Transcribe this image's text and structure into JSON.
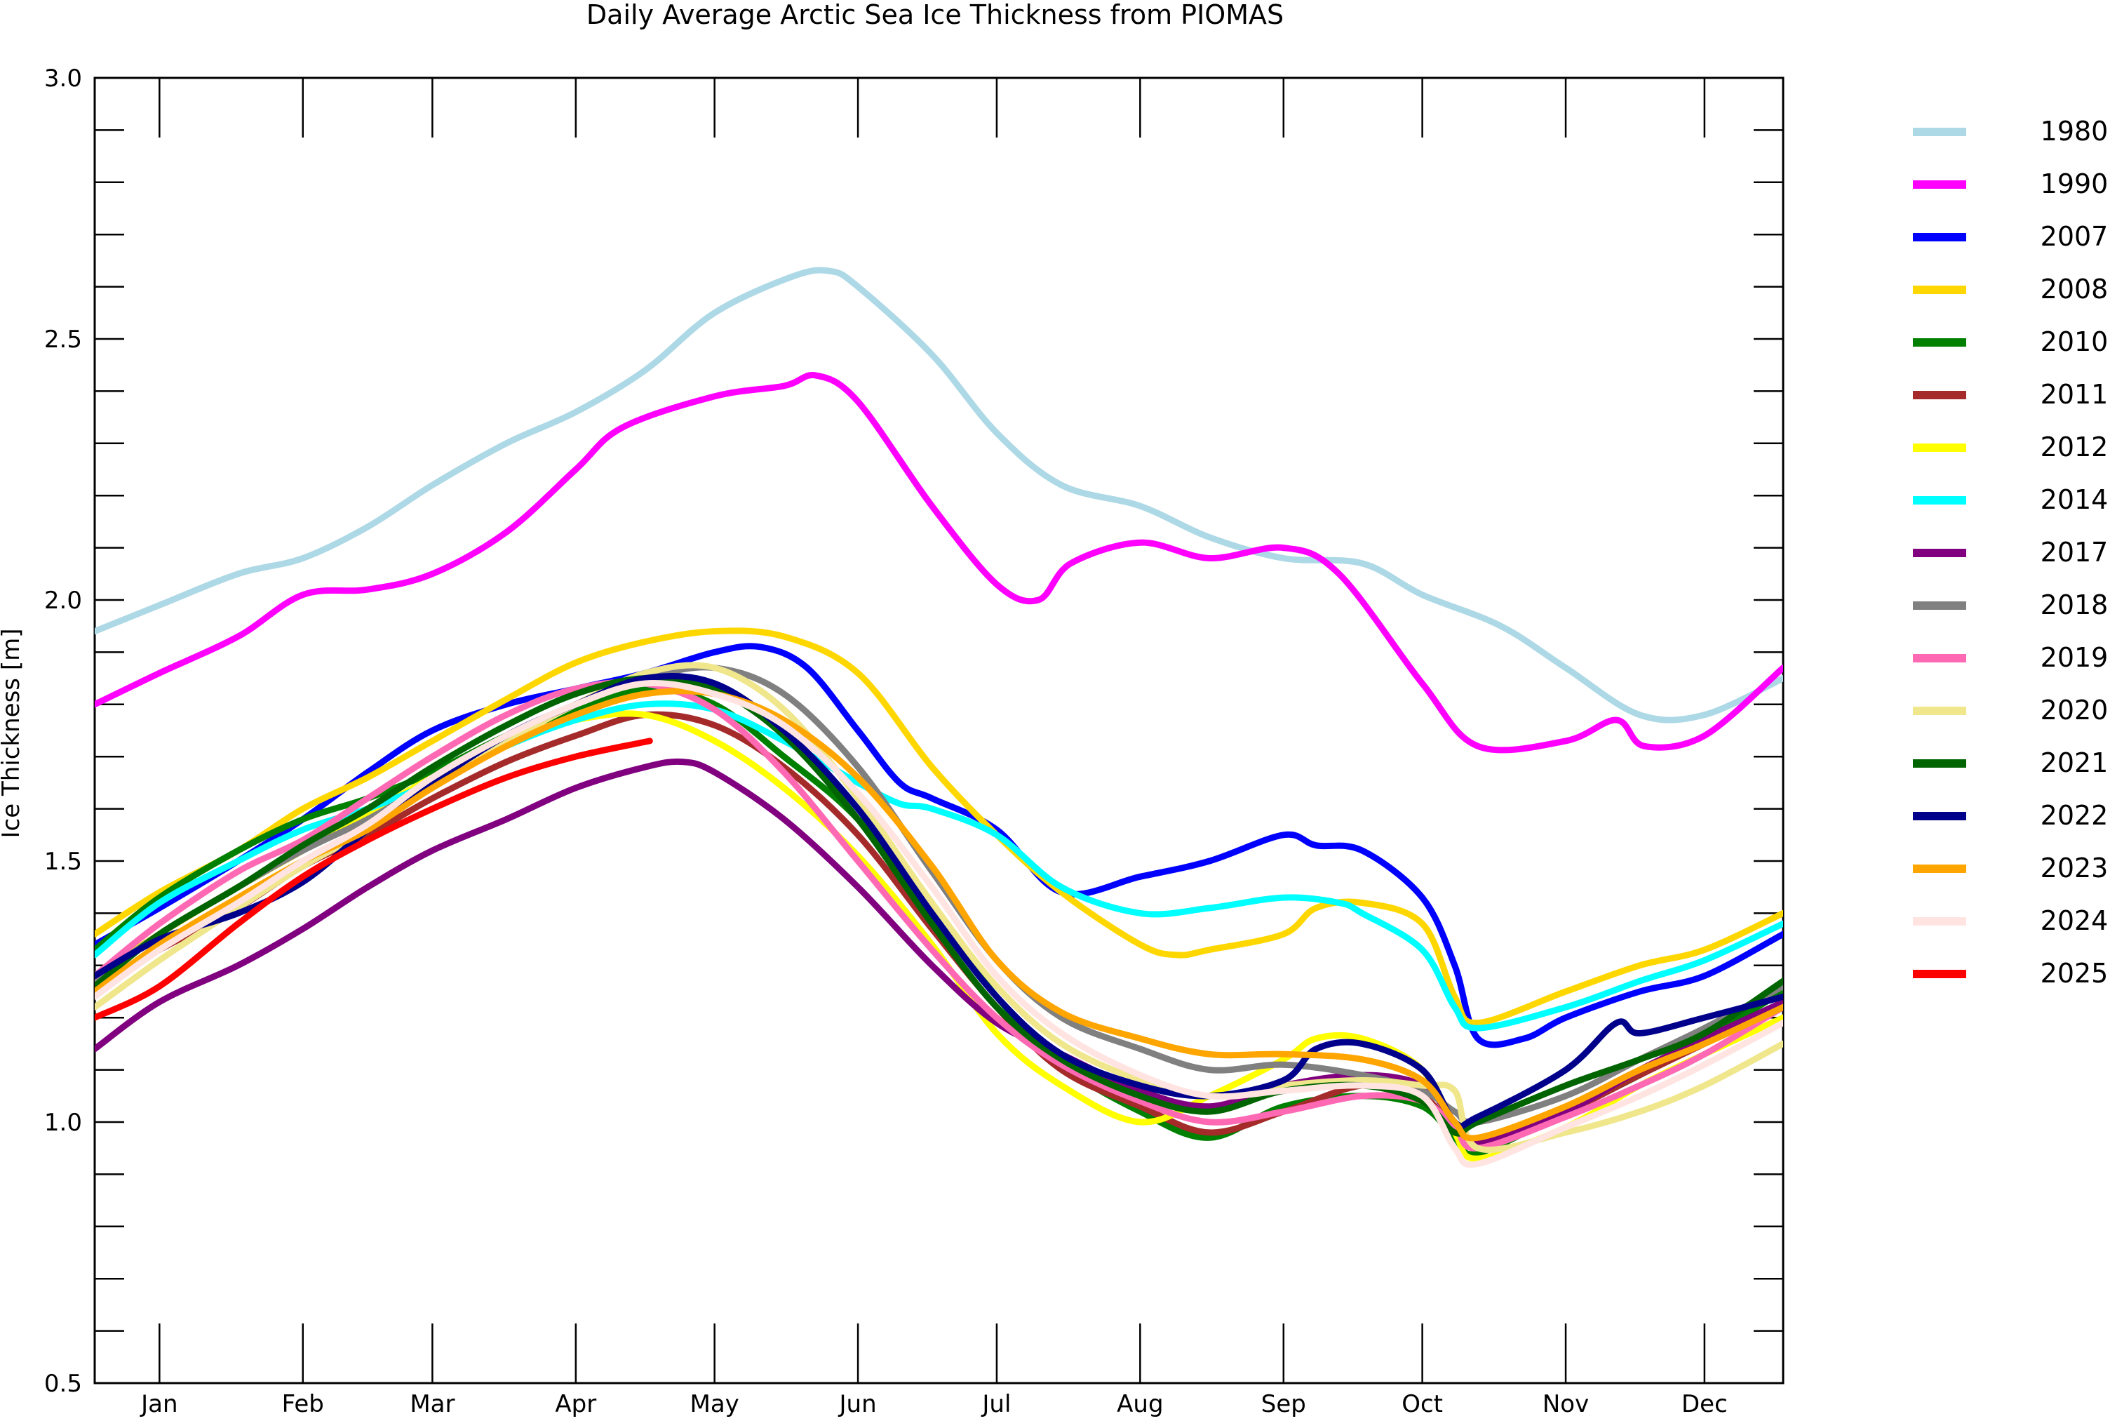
{
  "chart_data": {
    "type": "line",
    "title": "Daily Average Arctic Sea Ice Thickness from PIOMAS",
    "ylabel": "Ice Thickness  [m]",
    "xlabel": "",
    "ylim": [
      0.5,
      3.0
    ],
    "y_ticks": [
      "0.5",
      "1.0",
      "1.5",
      "2.0",
      "2.5",
      "3.0"
    ],
    "x_range_days": [
      1,
      366
    ],
    "months": [
      {
        "label": "Jan",
        "day": 15
      },
      {
        "label": "Feb",
        "day": 46
      },
      {
        "label": "Mar",
        "day": 74
      },
      {
        "label": "Apr",
        "day": 105
      },
      {
        "label": "May",
        "day": 135
      },
      {
        "label": "Jun",
        "day": 166
      },
      {
        "label": "Jul",
        "day": 196
      },
      {
        "label": "Aug",
        "day": 227
      },
      {
        "label": "Sep",
        "day": 258
      },
      {
        "label": "Oct",
        "day": 288
      },
      {
        "label": "Nov",
        "day": 319
      },
      {
        "label": "Dec",
        "day": 349
      }
    ],
    "legend_position": "right",
    "series": [
      {
        "name": "1980",
        "color": "#add8e6",
        "x": [
          1,
          15,
          32,
          46,
          60,
          74,
          90,
          105,
          120,
          135,
          152,
          160,
          166,
          182,
          196,
          210,
          227,
          242,
          258,
          275,
          288,
          305,
          319,
          335,
          349,
          366
        ],
        "y": [
          1.94,
          1.99,
          2.05,
          2.08,
          2.14,
          2.22,
          2.3,
          2.36,
          2.44,
          2.55,
          2.62,
          2.63,
          2.6,
          2.47,
          2.32,
          2.22,
          2.18,
          2.12,
          2.08,
          2.07,
          2.01,
          1.95,
          1.87,
          1.78,
          1.78,
          1.85
        ]
      },
      {
        "name": "1990",
        "color": "#ff00ff",
        "x": [
          1,
          15,
          32,
          46,
          60,
          74,
          90,
          105,
          115,
          135,
          150,
          157,
          166,
          182,
          196,
          205,
          212,
          227,
          242,
          258,
          270,
          288,
          300,
          319,
          330,
          336,
          349,
          366
        ],
        "y": [
          1.8,
          1.86,
          1.93,
          2.01,
          2.02,
          2.05,
          2.13,
          2.25,
          2.33,
          2.39,
          2.41,
          2.43,
          2.38,
          2.18,
          2.03,
          2.0,
          2.07,
          2.11,
          2.08,
          2.1,
          2.05,
          1.84,
          1.72,
          1.73,
          1.77,
          1.72,
          1.74,
          1.87
        ]
      },
      {
        "name": "2007",
        "color": "#0000ff",
        "x": [
          1,
          15,
          32,
          46,
          60,
          74,
          90,
          105,
          120,
          135,
          145,
          155,
          166,
          175,
          182,
          196,
          210,
          227,
          242,
          258,
          265,
          275,
          288,
          295,
          300,
          310,
          319,
          335,
          349,
          366
        ],
        "y": [
          1.34,
          1.41,
          1.5,
          1.58,
          1.67,
          1.75,
          1.8,
          1.83,
          1.86,
          1.9,
          1.91,
          1.87,
          1.75,
          1.65,
          1.62,
          1.56,
          1.44,
          1.47,
          1.5,
          1.55,
          1.53,
          1.52,
          1.43,
          1.3,
          1.16,
          1.16,
          1.2,
          1.25,
          1.28,
          1.36
        ]
      },
      {
        "name": "2008",
        "color": "#ffd700",
        "x": [
          1,
          15,
          32,
          46,
          60,
          74,
          90,
          105,
          120,
          135,
          150,
          166,
          182,
          196,
          210,
          227,
          235,
          242,
          258,
          265,
          275,
          288,
          295,
          300,
          319,
          335,
          349,
          366
        ],
        "y": [
          1.36,
          1.44,
          1.52,
          1.6,
          1.66,
          1.73,
          1.81,
          1.88,
          1.92,
          1.94,
          1.93,
          1.86,
          1.68,
          1.55,
          1.44,
          1.34,
          1.32,
          1.33,
          1.36,
          1.41,
          1.42,
          1.38,
          1.24,
          1.19,
          1.25,
          1.3,
          1.33,
          1.4
        ]
      },
      {
        "name": "2010",
        "color": "#008000",
        "x": [
          1,
          15,
          32,
          46,
          60,
          74,
          90,
          105,
          120,
          135,
          150,
          166,
          182,
          196,
          210,
          227,
          242,
          258,
          275,
          288,
          295,
          300,
          319,
          335,
          349,
          366
        ],
        "y": [
          1.33,
          1.43,
          1.52,
          1.58,
          1.62,
          1.67,
          1.74,
          1.79,
          1.83,
          1.8,
          1.7,
          1.58,
          1.4,
          1.24,
          1.11,
          1.02,
          0.97,
          1.03,
          1.05,
          1.03,
          0.97,
          0.94,
          1.02,
          1.09,
          1.16,
          1.25
        ]
      },
      {
        "name": "2011",
        "color": "#a52a2a",
        "x": [
          1,
          15,
          32,
          46,
          60,
          74,
          90,
          105,
          120,
          135,
          150,
          166,
          182,
          196,
          210,
          227,
          242,
          258,
          275,
          288,
          295,
          300,
          319,
          335,
          349,
          366
        ],
        "y": [
          1.26,
          1.33,
          1.41,
          1.49,
          1.55,
          1.62,
          1.69,
          1.74,
          1.78,
          1.76,
          1.68,
          1.55,
          1.37,
          1.22,
          1.1,
          1.03,
          0.98,
          1.02,
          1.07,
          1.05,
          0.98,
          0.96,
          1.02,
          1.09,
          1.15,
          1.22
        ]
      },
      {
        "name": "2012",
        "color": "#ffff00",
        "x": [
          1,
          15,
          32,
          46,
          60,
          74,
          90,
          105,
          120,
          135,
          150,
          166,
          182,
          196,
          210,
          227,
          242,
          258,
          265,
          275,
          288,
          295,
          300,
          319,
          335,
          349,
          366
        ],
        "y": [
          1.28,
          1.36,
          1.45,
          1.52,
          1.59,
          1.66,
          1.73,
          1.77,
          1.78,
          1.73,
          1.64,
          1.51,
          1.34,
          1.17,
          1.07,
          1.0,
          1.05,
          1.12,
          1.16,
          1.16,
          1.1,
          0.98,
          0.93,
          0.99,
          1.07,
          1.13,
          1.2
        ]
      },
      {
        "name": "2014",
        "color": "#00ffff",
        "x": [
          1,
          15,
          32,
          46,
          60,
          74,
          90,
          105,
          120,
          135,
          150,
          166,
          175,
          182,
          196,
          210,
          227,
          242,
          258,
          270,
          275,
          288,
          295,
          300,
          319,
          335,
          349,
          366
        ],
        "y": [
          1.32,
          1.42,
          1.5,
          1.56,
          1.6,
          1.65,
          1.72,
          1.77,
          1.8,
          1.79,
          1.73,
          1.65,
          1.61,
          1.6,
          1.55,
          1.45,
          1.4,
          1.41,
          1.43,
          1.42,
          1.4,
          1.33,
          1.22,
          1.18,
          1.22,
          1.27,
          1.31,
          1.38
        ]
      },
      {
        "name": "2017",
        "color": "#800080",
        "x": [
          1,
          15,
          32,
          46,
          60,
          74,
          90,
          105,
          120,
          128,
          135,
          150,
          166,
          182,
          196,
          210,
          227,
          242,
          258,
          275,
          288,
          295,
          300,
          319,
          335,
          349,
          366
        ],
        "y": [
          1.14,
          1.23,
          1.3,
          1.37,
          1.45,
          1.52,
          1.58,
          1.64,
          1.68,
          1.69,
          1.67,
          1.58,
          1.45,
          1.3,
          1.19,
          1.13,
          1.06,
          1.03,
          1.07,
          1.09,
          1.07,
          1.0,
          0.96,
          1.02,
          1.1,
          1.16,
          1.23
        ]
      },
      {
        "name": "2018",
        "color": "#808080",
        "x": [
          1,
          15,
          32,
          46,
          60,
          74,
          90,
          105,
          120,
          135,
          150,
          166,
          182,
          196,
          210,
          227,
          242,
          258,
          275,
          288,
          295,
          300,
          319,
          335,
          349,
          366
        ],
        "y": [
          1.27,
          1.36,
          1.45,
          1.52,
          1.58,
          1.65,
          1.73,
          1.8,
          1.85,
          1.87,
          1.82,
          1.68,
          1.48,
          1.31,
          1.2,
          1.14,
          1.1,
          1.11,
          1.09,
          1.06,
          1.02,
          1.0,
          1.05,
          1.12,
          1.18,
          1.26
        ]
      },
      {
        "name": "2019",
        "color": "#ff69b4",
        "x": [
          1,
          15,
          32,
          46,
          60,
          74,
          90,
          105,
          120,
          135,
          150,
          166,
          182,
          196,
          210,
          227,
          242,
          258,
          275,
          288,
          295,
          300,
          319,
          335,
          349,
          366
        ],
        "y": [
          1.28,
          1.38,
          1.48,
          1.54,
          1.62,
          1.7,
          1.78,
          1.83,
          1.84,
          1.79,
          1.67,
          1.5,
          1.33,
          1.2,
          1.11,
          1.04,
          1.0,
          1.02,
          1.05,
          1.04,
          0.99,
          0.95,
          1.01,
          1.07,
          1.13,
          1.22
        ]
      },
      {
        "name": "2020",
        "color": "#f0e68c",
        "x": [
          1,
          15,
          32,
          46,
          60,
          74,
          90,
          105,
          120,
          135,
          150,
          166,
          182,
          196,
          210,
          227,
          242,
          258,
          275,
          288,
          295,
          300,
          319,
          335,
          349,
          366
        ],
        "y": [
          1.22,
          1.31,
          1.41,
          1.49,
          1.56,
          1.65,
          1.73,
          1.8,
          1.86,
          1.87,
          1.79,
          1.62,
          1.42,
          1.26,
          1.15,
          1.08,
          1.05,
          1.07,
          1.08,
          1.07,
          1.06,
          0.95,
          0.98,
          1.02,
          1.07,
          1.15
        ]
      },
      {
        "name": "2021",
        "color": "#006400",
        "x": [
          1,
          15,
          32,
          46,
          60,
          74,
          90,
          105,
          120,
          135,
          150,
          166,
          182,
          196,
          210,
          227,
          242,
          258,
          275,
          288,
          295,
          300,
          319,
          335,
          349,
          366
        ],
        "y": [
          1.26,
          1.36,
          1.45,
          1.53,
          1.6,
          1.68,
          1.76,
          1.82,
          1.85,
          1.83,
          1.74,
          1.58,
          1.38,
          1.22,
          1.12,
          1.05,
          1.02,
          1.06,
          1.07,
          1.04,
          0.98,
          1.0,
          1.07,
          1.12,
          1.17,
          1.27
        ]
      },
      {
        "name": "2022",
        "color": "#00008b",
        "x": [
          1,
          15,
          32,
          46,
          60,
          74,
          90,
          105,
          120,
          135,
          150,
          166,
          182,
          196,
          210,
          227,
          242,
          258,
          265,
          275,
          288,
          295,
          300,
          319,
          330,
          335,
          349,
          366
        ],
        "y": [
          1.28,
          1.35,
          1.4,
          1.46,
          1.56,
          1.65,
          1.74,
          1.8,
          1.85,
          1.84,
          1.75,
          1.6,
          1.4,
          1.24,
          1.13,
          1.07,
          1.05,
          1.08,
          1.14,
          1.15,
          1.1,
          1.0,
          1.01,
          1.1,
          1.19,
          1.17,
          1.2,
          1.24
        ]
      },
      {
        "name": "2023",
        "color": "#ffa500",
        "x": [
          1,
          15,
          32,
          46,
          60,
          74,
          90,
          105,
          120,
          135,
          150,
          166,
          182,
          196,
          210,
          227,
          242,
          258,
          275,
          288,
          295,
          300,
          319,
          335,
          349,
          366
        ],
        "y": [
          1.25,
          1.34,
          1.43,
          1.5,
          1.56,
          1.64,
          1.72,
          1.78,
          1.82,
          1.82,
          1.77,
          1.66,
          1.49,
          1.31,
          1.21,
          1.16,
          1.13,
          1.13,
          1.12,
          1.08,
          1.0,
          0.97,
          1.03,
          1.1,
          1.15,
          1.22
        ]
      },
      {
        "name": "2024",
        "color": "#ffe4e1",
        "x": [
          1,
          15,
          32,
          46,
          60,
          74,
          90,
          105,
          120,
          135,
          150,
          166,
          182,
          196,
          210,
          227,
          242,
          258,
          275,
          288,
          295,
          300,
          319,
          335,
          349,
          366
        ],
        "y": [
          1.24,
          1.33,
          1.42,
          1.5,
          1.57,
          1.66,
          1.74,
          1.8,
          1.84,
          1.82,
          1.76,
          1.63,
          1.45,
          1.28,
          1.17,
          1.09,
          1.05,
          1.06,
          1.07,
          1.05,
          0.95,
          0.92,
          0.99,
          1.05,
          1.11,
          1.19
        ]
      },
      {
        "name": "2025",
        "color": "#ff0000",
        "x": [
          1,
          15,
          32,
          46,
          60,
          74,
          90,
          105,
          121
        ],
        "y": [
          1.2,
          1.26,
          1.38,
          1.47,
          1.54,
          1.6,
          1.66,
          1.7,
          1.73
        ]
      }
    ]
  }
}
